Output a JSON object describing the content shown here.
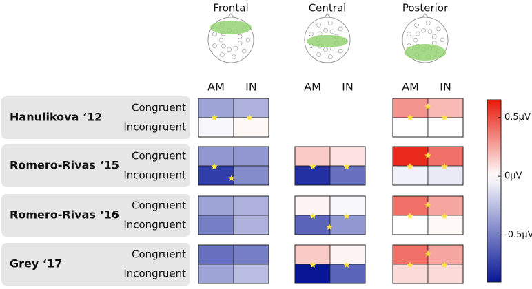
{
  "chart_data": {
    "type": "heatmap",
    "regions": [
      "Frontal",
      "Central",
      "Posterior"
    ],
    "groups": [
      "AM",
      "IN"
    ],
    "studies": [
      "Hanulikova ‘12",
      "Romero-Rivas ‘15",
      "Romero-Rivas ‘16",
      "Grey ‘17"
    ],
    "conditions": [
      "Congruent",
      "Incongruent"
    ],
    "values": [
      [
        [
          [
            -0.35,
            -0.3
          ],
          [
            -0.03,
            0.02
          ]
        ],
        [
          [
            null,
            null
          ],
          [
            null,
            null
          ]
        ],
        [
          [
            0.3,
            0.2
          ],
          [
            0.0,
            0.0
          ]
        ]
      ],
      [
        [
          [
            -0.4,
            -0.4
          ],
          [
            -0.75,
            -0.45
          ]
        ],
        [
          [
            0.15,
            0.08
          ],
          [
            -0.8,
            -0.55
          ]
        ],
        [
          [
            0.6,
            0.4
          ],
          [
            -0.05,
            -0.08
          ]
        ]
      ],
      [
        [
          [
            -0.35,
            -0.3
          ],
          [
            -0.5,
            -0.3
          ]
        ],
        [
          [
            0.03,
            -0.03
          ],
          [
            -0.6,
            -0.4
          ]
        ],
        [
          [
            0.4,
            0.25
          ],
          [
            0.0,
            0.02
          ]
        ]
      ],
      [
        [
          [
            -0.55,
            -0.5
          ],
          [
            -0.35,
            -0.25
          ]
        ],
        [
          [
            0.15,
            0.03
          ],
          [
            -0.9,
            -0.6
          ]
        ],
        [
          [
            0.4,
            0.25
          ],
          [
            0.1,
            0.1
          ]
        ]
      ]
    ],
    "zlim": [
      -0.9,
      0.65
    ],
    "zticks": [
      {
        "value": 0.5,
        "label": "0.5µV"
      },
      {
        "value": 0,
        "label": "0µV"
      },
      {
        "value": -0.5,
        "label": "-0.5µV"
      }
    ]
  }
}
